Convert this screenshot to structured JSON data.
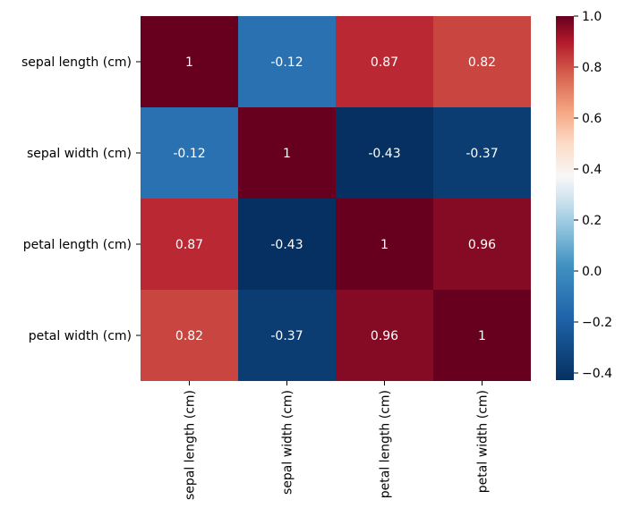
{
  "chart_data": {
    "type": "heatmap",
    "row_labels": [
      "sepal length (cm)",
      "sepal width (cm)",
      "petal length (cm)",
      "petal width (cm)"
    ],
    "col_labels": [
      "sepal length (cm)",
      "sepal width (cm)",
      "petal length (cm)",
      "petal width (cm)"
    ],
    "values": [
      [
        1,
        -0.12,
        0.87,
        0.82
      ],
      [
        -0.12,
        1,
        -0.43,
        -0.37
      ],
      [
        0.87,
        -0.43,
        1,
        0.96
      ],
      [
        0.82,
        -0.37,
        0.96,
        1
      ]
    ],
    "annotations": [
      [
        "1",
        "-0.12",
        "0.87",
        "0.82"
      ],
      [
        "-0.12",
        "1",
        "-0.43",
        "-0.37"
      ],
      [
        "0.87",
        "-0.43",
        "1",
        "0.96"
      ],
      [
        "0.82",
        "-0.37",
        "0.96",
        "1"
      ]
    ],
    "colormap": "RdBu_r",
    "colorbar": {
      "vmin": -0.428,
      "vmax": 1.0,
      "ticks": [
        1.0,
        0.8,
        0.6,
        0.4,
        0.2,
        0.0,
        -0.2,
        -0.4
      ],
      "tick_labels": [
        "1.0",
        "0.8",
        "0.6",
        "0.4",
        "0.2",
        "0.0",
        "−0.2",
        "−0.4"
      ]
    },
    "title": "",
    "xlabel": "",
    "ylabel": ""
  }
}
